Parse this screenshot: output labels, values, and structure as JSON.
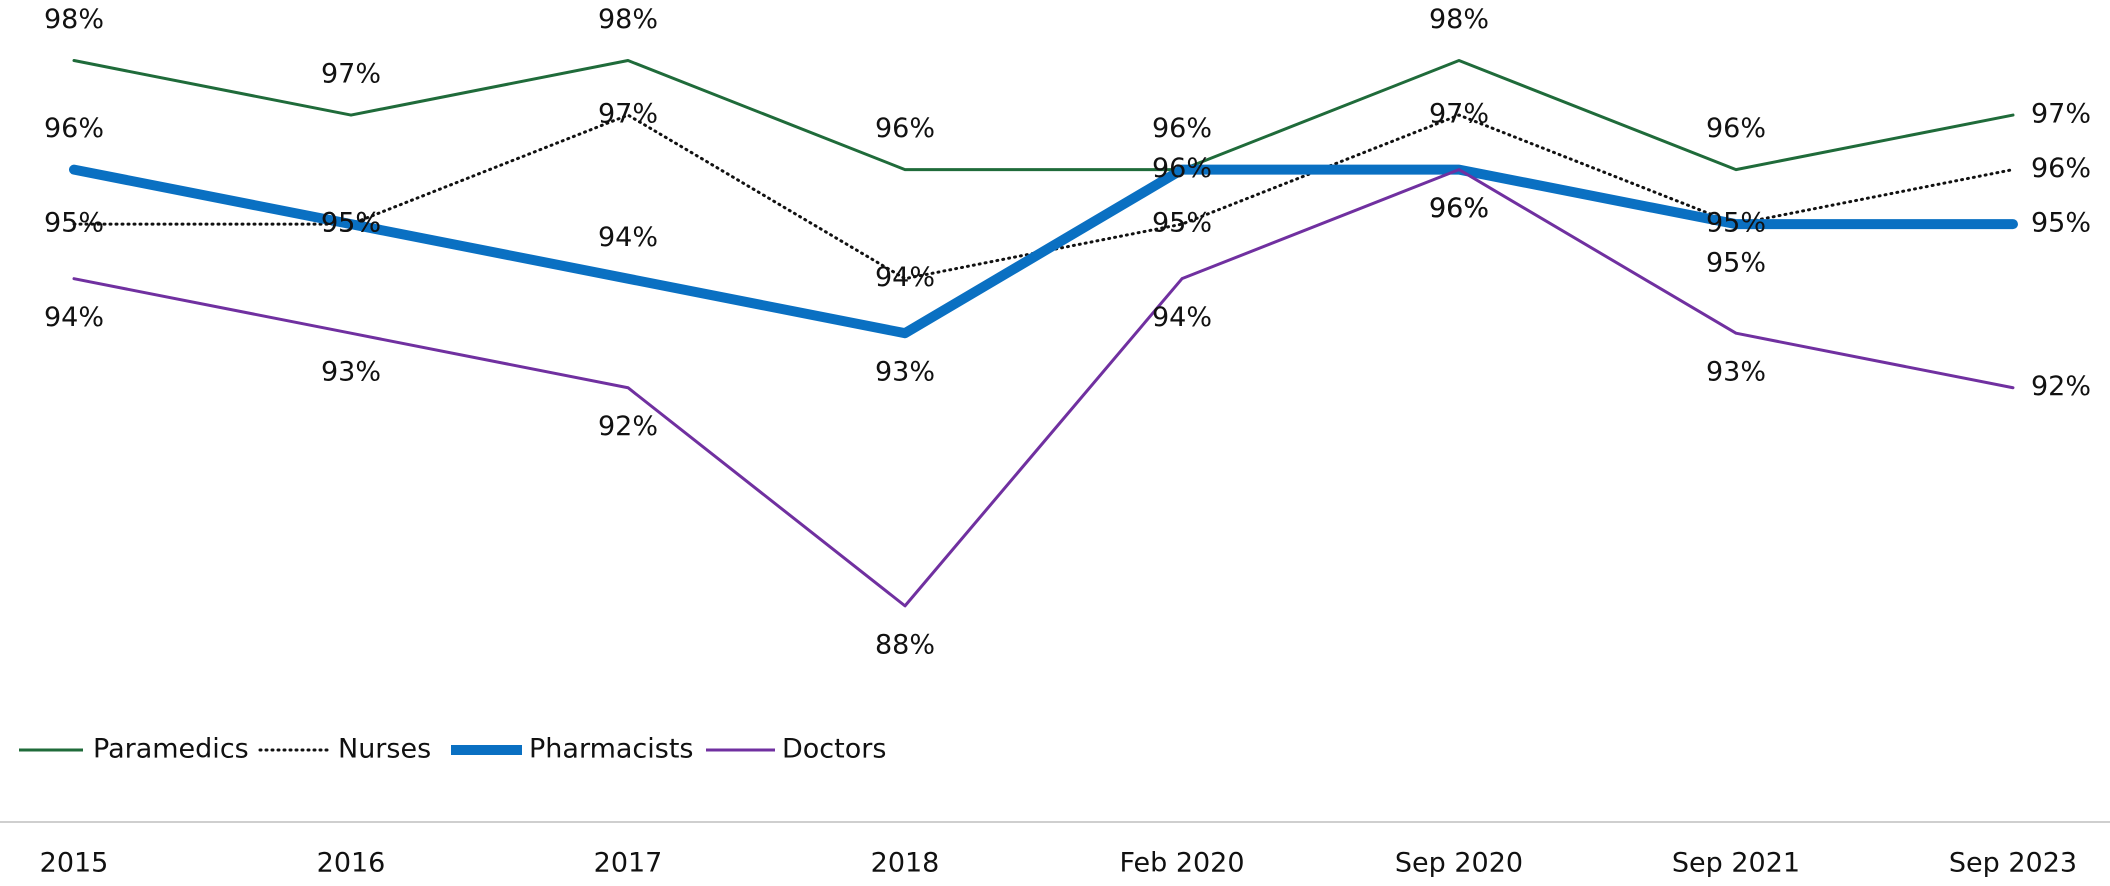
{
  "chart_data": {
    "type": "line",
    "categories": [
      "2015",
      "2016",
      "2017",
      "2018",
      "Feb 2020",
      "Sep 2020",
      "Sep 2021",
      "Sep 2023"
    ],
    "series": [
      {
        "name": "Paramedics",
        "color": "#1f6b3a",
        "line_style": "solid",
        "values": [
          98,
          97,
          98,
          96,
          96,
          98,
          96,
          97
        ],
        "value_labels": [
          "98%",
          "97%",
          "98%",
          "96%",
          "96%",
          "98%",
          "96%",
          "97%"
        ]
      },
      {
        "name": "Nurses",
        "color": "#111111",
        "line_style": "dotted",
        "values": [
          95,
          95,
          97,
          94,
          95,
          97,
          95,
          96
        ],
        "value_labels": [
          "95%",
          "95%",
          "97%",
          "94%",
          "95%",
          "97%",
          "95%",
          "96%"
        ]
      },
      {
        "name": "Pharmacists",
        "color": "#0a70c2",
        "line_style": "solid",
        "values": [
          96,
          95,
          94,
          93,
          96,
          96,
          95,
          95
        ],
        "value_labels": [
          "96%",
          "95%",
          "94%",
          "93%",
          "96%",
          "96%",
          "95%",
          "95%"
        ]
      },
      {
        "name": "Doctors",
        "color": "#7030a0",
        "line_style": "solid",
        "values": [
          94,
          93,
          92,
          88,
          94,
          96,
          93,
          92
        ],
        "value_labels": [
          "94%",
          "93%",
          "92%",
          "88%",
          "94%",
          "96%",
          "93%",
          "92%"
        ]
      }
    ],
    "ylim": [
      84,
      99
    ],
    "legend": "bottom-left"
  }
}
